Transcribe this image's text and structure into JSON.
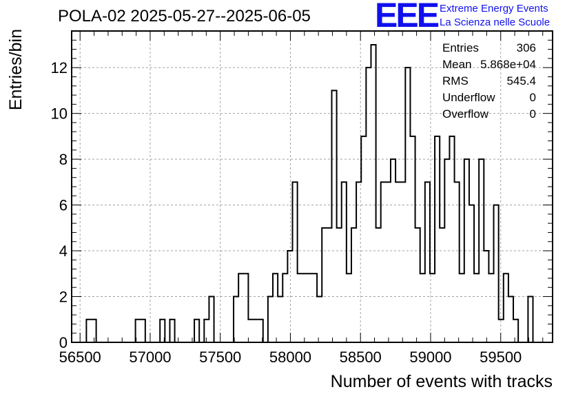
{
  "title": "POLA-02 2025-05-27--2025-06-05",
  "logo": {
    "mark": "EEE",
    "line1": "Extreme Energy Events",
    "line2": "La Scienza nelle Scuole"
  },
  "stats": [
    {
      "label": "Entries",
      "value": "306"
    },
    {
      "label": "Mean",
      "value": "5.868e+04"
    },
    {
      "label": "RMS",
      "value": "545.4"
    },
    {
      "label": "Underflow",
      "value": "0"
    },
    {
      "label": "Overflow",
      "value": "0"
    }
  ],
  "chart_data": {
    "type": "histogram",
    "xlabel": "Number of events with tracks",
    "ylabel": "Entries/bin",
    "xlim": [
      56440,
      59870
    ],
    "ylim": [
      0,
      13.6
    ],
    "bin_width": 35,
    "grid": true,
    "x_ticks": [
      56500,
      57000,
      57500,
      58000,
      58500,
      59000,
      59500
    ],
    "x_tick_labels": [
      "56500",
      "57000",
      "57500",
      "58000",
      "58500",
      "59000",
      "59500"
    ],
    "y_ticks": [
      0,
      2,
      4,
      6,
      8,
      10,
      12
    ],
    "y_tick_labels": [
      "0",
      "2",
      "4",
      "6",
      "8",
      "10",
      "12"
    ],
    "bins": [
      {
        "x": 56510,
        "y": 0
      },
      {
        "x": 56545,
        "y": 1
      },
      {
        "x": 56580,
        "y": 1
      },
      {
        "x": 56615,
        "y": 0
      },
      {
        "x": 56650,
        "y": 0
      },
      {
        "x": 56685,
        "y": 0
      },
      {
        "x": 56720,
        "y": 0
      },
      {
        "x": 56755,
        "y": 0
      },
      {
        "x": 56790,
        "y": 0
      },
      {
        "x": 56825,
        "y": 0
      },
      {
        "x": 56860,
        "y": 0
      },
      {
        "x": 56895,
        "y": 1
      },
      {
        "x": 56930,
        "y": 1
      },
      {
        "x": 56965,
        "y": 0
      },
      {
        "x": 57000,
        "y": 0
      },
      {
        "x": 57035,
        "y": 0
      },
      {
        "x": 57070,
        "y": 1
      },
      {
        "x": 57105,
        "y": 0
      },
      {
        "x": 57140,
        "y": 1
      },
      {
        "x": 57175,
        "y": 0
      },
      {
        "x": 57210,
        "y": 0
      },
      {
        "x": 57245,
        "y": 0
      },
      {
        "x": 57280,
        "y": 0
      },
      {
        "x": 57315,
        "y": 1
      },
      {
        "x": 57350,
        "y": 0
      },
      {
        "x": 57385,
        "y": 1
      },
      {
        "x": 57420,
        "y": 2
      },
      {
        "x": 57455,
        "y": 0
      },
      {
        "x": 57490,
        "y": 0
      },
      {
        "x": 57525,
        "y": 0
      },
      {
        "x": 57560,
        "y": 0
      },
      {
        "x": 57595,
        "y": 2
      },
      {
        "x": 57630,
        "y": 3
      },
      {
        "x": 57665,
        "y": 3
      },
      {
        "x": 57700,
        "y": 1
      },
      {
        "x": 57735,
        "y": 1
      },
      {
        "x": 57770,
        "y": 1
      },
      {
        "x": 57805,
        "y": 0
      },
      {
        "x": 57840,
        "y": 2
      },
      {
        "x": 57875,
        "y": 3
      },
      {
        "x": 57910,
        "y": 2
      },
      {
        "x": 57945,
        "y": 3
      },
      {
        "x": 57980,
        "y": 4
      },
      {
        "x": 58015,
        "y": 7
      },
      {
        "x": 58050,
        "y": 3
      },
      {
        "x": 58085,
        "y": 3
      },
      {
        "x": 58120,
        "y": 3
      },
      {
        "x": 58155,
        "y": 3
      },
      {
        "x": 58190,
        "y": 2
      },
      {
        "x": 58225,
        "y": 5
      },
      {
        "x": 58260,
        "y": 5
      },
      {
        "x": 58295,
        "y": 11
      },
      {
        "x": 58330,
        "y": 5
      },
      {
        "x": 58365,
        "y": 7
      },
      {
        "x": 58400,
        "y": 3
      },
      {
        "x": 58435,
        "y": 5
      },
      {
        "x": 58470,
        "y": 7
      },
      {
        "x": 58505,
        "y": 9
      },
      {
        "x": 58540,
        "y": 12
      },
      {
        "x": 58575,
        "y": 13
      },
      {
        "x": 58610,
        "y": 5
      },
      {
        "x": 58645,
        "y": 7
      },
      {
        "x": 58680,
        "y": 7
      },
      {
        "x": 58715,
        "y": 8
      },
      {
        "x": 58750,
        "y": 7
      },
      {
        "x": 58785,
        "y": 7
      },
      {
        "x": 58820,
        "y": 12
      },
      {
        "x": 58855,
        "y": 9
      },
      {
        "x": 58890,
        "y": 5
      },
      {
        "x": 58925,
        "y": 3
      },
      {
        "x": 58960,
        "y": 7
      },
      {
        "x": 58995,
        "y": 3
      },
      {
        "x": 59030,
        "y": 9
      },
      {
        "x": 59065,
        "y": 5
      },
      {
        "x": 59100,
        "y": 8
      },
      {
        "x": 59135,
        "y": 9
      },
      {
        "x": 59170,
        "y": 7
      },
      {
        "x": 59205,
        "y": 3
      },
      {
        "x": 59240,
        "y": 8
      },
      {
        "x": 59275,
        "y": 6
      },
      {
        "x": 59310,
        "y": 3
      },
      {
        "x": 59345,
        "y": 8
      },
      {
        "x": 59380,
        "y": 4
      },
      {
        "x": 59415,
        "y": 3
      },
      {
        "x": 59450,
        "y": 6
      },
      {
        "x": 59485,
        "y": 1
      },
      {
        "x": 59520,
        "y": 3
      },
      {
        "x": 59555,
        "y": 2
      },
      {
        "x": 59590,
        "y": 1
      },
      {
        "x": 59625,
        "y": 0
      },
      {
        "x": 59660,
        "y": 0
      },
      {
        "x": 59695,
        "y": 2
      },
      {
        "x": 59730,
        "y": 0
      }
    ],
    "colors": {
      "line": "#000000",
      "grid": "#a0a0a0",
      "logo": "#1010ee"
    }
  }
}
